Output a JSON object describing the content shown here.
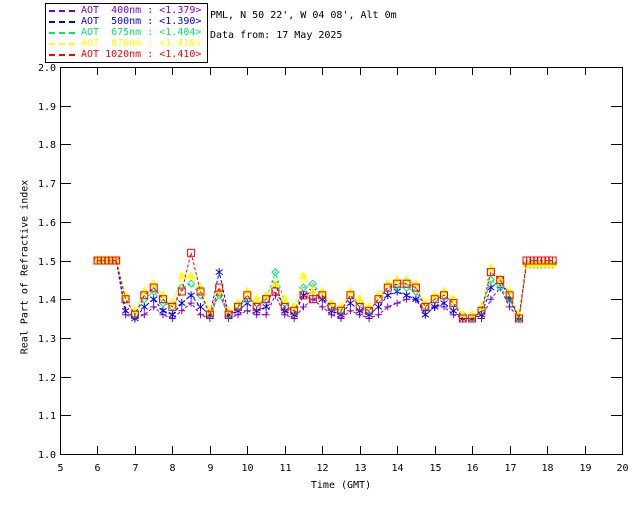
{
  "header": {
    "line1": "PML, N 50 22', W 04 08', Alt 0m",
    "line2": "Data from: 17 May 2025"
  },
  "legend": {
    "items": [
      {
        "label": "AOT  400nm : <1.379>",
        "color": "#8000C8"
      },
      {
        "label": "AOT  500nm : <1.390>",
        "color": "#0000FF"
      },
      {
        "label": "AOT  675nm : <1.404>",
        "color": "#00E673"
      },
      {
        "label": "AOT  870nm : <1.416>",
        "color": "#FFFF00"
      },
      {
        "label": "AOT 1020nm : <1.410>",
        "color": "#FF0000"
      }
    ]
  },
  "chart_data": {
    "type": "line",
    "title": "",
    "xlabel": "Time (GMT)",
    "ylabel": "Real Part of Refractive index",
    "xlim": [
      5,
      20
    ],
    "ylim": [
      1.0,
      2.0
    ],
    "xticks": [
      5,
      6,
      7,
      8,
      9,
      10,
      11,
      12,
      13,
      14,
      15,
      16,
      17,
      18,
      19,
      20
    ],
    "yticks": [
      1.0,
      1.1,
      1.2,
      1.3,
      1.4,
      1.5,
      1.6,
      1.7,
      1.8,
      1.9,
      2.0
    ],
    "grid": false,
    "legend_position": "top-left",
    "frame_color": "#000000",
    "x": [
      6.0,
      6.1,
      6.2,
      6.3,
      6.4,
      6.5,
      6.75,
      7.0,
      7.25,
      7.5,
      7.75,
      8.0,
      8.25,
      8.5,
      8.75,
      9.0,
      9.25,
      9.5,
      9.75,
      10.0,
      10.25,
      10.5,
      10.75,
      11.0,
      11.25,
      11.5,
      11.75,
      12.0,
      12.25,
      12.5,
      12.75,
      13.0,
      13.25,
      13.5,
      13.75,
      14.0,
      14.25,
      14.5,
      14.75,
      15.0,
      15.25,
      15.5,
      15.75,
      16.0,
      16.25,
      16.5,
      16.75,
      17.0,
      17.25,
      17.45,
      17.55,
      17.65,
      17.75,
      17.85,
      17.95,
      18.05,
      18.15
    ],
    "series": [
      {
        "name": "AOT 400nm",
        "mean": "<1.379>",
        "color": "#8000C8",
        "marker": "plus",
        "values": [
          1.5,
          1.5,
          1.5,
          1.5,
          1.5,
          1.5,
          1.36,
          1.35,
          1.36,
          1.38,
          1.36,
          1.35,
          1.37,
          1.39,
          1.36,
          1.35,
          1.42,
          1.35,
          1.36,
          1.37,
          1.36,
          1.36,
          1.41,
          1.36,
          1.35,
          1.38,
          1.4,
          1.38,
          1.36,
          1.35,
          1.37,
          1.36,
          1.35,
          1.36,
          1.38,
          1.39,
          1.4,
          1.4,
          1.37,
          1.38,
          1.38,
          1.36,
          1.35,
          1.35,
          1.35,
          1.4,
          1.43,
          1.38,
          1.35,
          1.49,
          1.49,
          1.49,
          1.49,
          1.49,
          1.49,
          1.49,
          1.49
        ]
      },
      {
        "name": "AOT 500nm",
        "mean": "<1.390>",
        "color": "#0000FF",
        "marker": "asterisk",
        "values": [
          1.5,
          1.5,
          1.5,
          1.5,
          1.5,
          1.5,
          1.37,
          1.35,
          1.38,
          1.4,
          1.37,
          1.36,
          1.39,
          1.41,
          1.38,
          1.36,
          1.47,
          1.36,
          1.37,
          1.39,
          1.37,
          1.38,
          1.44,
          1.37,
          1.36,
          1.41,
          1.42,
          1.4,
          1.37,
          1.36,
          1.39,
          1.37,
          1.36,
          1.38,
          1.41,
          1.42,
          1.41,
          1.4,
          1.36,
          1.38,
          1.39,
          1.37,
          1.35,
          1.35,
          1.36,
          1.43,
          1.45,
          1.4,
          1.35,
          1.49,
          1.49,
          1.49,
          1.49,
          1.49,
          1.49,
          1.49,
          1.49
        ]
      },
      {
        "name": "AOT 675nm",
        "mean": "<1.404>",
        "color": "#00E673",
        "marker": "diamond",
        "values": [
          1.5,
          1.5,
          1.5,
          1.5,
          1.5,
          1.5,
          1.4,
          1.36,
          1.4,
          1.42,
          1.39,
          1.38,
          1.43,
          1.44,
          1.41,
          1.36,
          1.41,
          1.36,
          1.38,
          1.4,
          1.39,
          1.4,
          1.47,
          1.39,
          1.37,
          1.43,
          1.44,
          1.41,
          1.38,
          1.37,
          1.41,
          1.39,
          1.37,
          1.4,
          1.43,
          1.43,
          1.43,
          1.42,
          1.38,
          1.4,
          1.41,
          1.39,
          1.36,
          1.35,
          1.37,
          1.45,
          1.43,
          1.4,
          1.35,
          1.49,
          1.49,
          1.49,
          1.49,
          1.49,
          1.49,
          1.49,
          1.49
        ]
      },
      {
        "name": "AOT 870nm",
        "mean": "<1.416>",
        "color": "#FFFF00",
        "marker": "triangle",
        "values": [
          1.5,
          1.5,
          1.5,
          1.5,
          1.5,
          1.5,
          1.41,
          1.37,
          1.42,
          1.44,
          1.41,
          1.39,
          1.46,
          1.46,
          1.43,
          1.37,
          1.42,
          1.37,
          1.39,
          1.42,
          1.4,
          1.41,
          1.44,
          1.4,
          1.38,
          1.46,
          1.42,
          1.42,
          1.39,
          1.38,
          1.42,
          1.4,
          1.38,
          1.41,
          1.44,
          1.45,
          1.45,
          1.44,
          1.39,
          1.41,
          1.42,
          1.4,
          1.36,
          1.36,
          1.38,
          1.48,
          1.45,
          1.42,
          1.36,
          1.49,
          1.49,
          1.49,
          1.49,
          1.49,
          1.49,
          1.49,
          1.49
        ]
      },
      {
        "name": "AOT 1020nm",
        "mean": "<1.410>",
        "color": "#FF0000",
        "marker": "square",
        "values": [
          1.5,
          1.5,
          1.5,
          1.5,
          1.5,
          1.5,
          1.4,
          1.36,
          1.41,
          1.43,
          1.4,
          1.38,
          1.42,
          1.52,
          1.42,
          1.36,
          1.43,
          1.36,
          1.38,
          1.41,
          1.38,
          1.4,
          1.42,
          1.38,
          1.37,
          1.41,
          1.4,
          1.41,
          1.38,
          1.37,
          1.41,
          1.38,
          1.37,
          1.4,
          1.43,
          1.44,
          1.44,
          1.43,
          1.38,
          1.4,
          1.41,
          1.39,
          1.35,
          1.35,
          1.37,
          1.47,
          1.45,
          1.41,
          1.35,
          1.5,
          1.5,
          1.5,
          1.5,
          1.5,
          1.5,
          1.5,
          1.5
        ]
      }
    ]
  }
}
